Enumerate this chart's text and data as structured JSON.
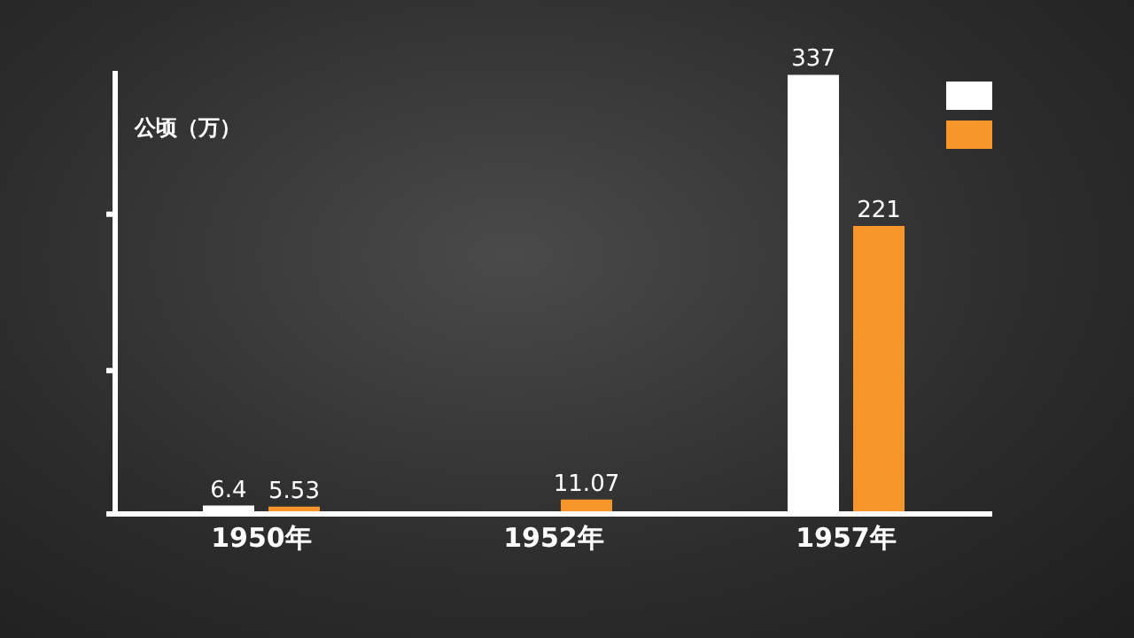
{
  "chart_data": {
    "type": "bar",
    "ylabel": "公顷（万）",
    "categories": [
      "1950年",
      "1952年",
      "1957年"
    ],
    "series": [
      {
        "color": "#ffffff",
        "values": [
          6.4,
          null,
          337
        ]
      },
      {
        "color": "#f7962b",
        "values": [
          5.53,
          11.07,
          221
        ]
      }
    ],
    "ylim": [
      0,
      340
    ],
    "yticks": [
      {
        "value": 0,
        "label": null
      },
      {
        "value": 110,
        "label": null
      },
      {
        "value": 230,
        "label": null
      }
    ],
    "data_labels": true,
    "grid": false
  }
}
